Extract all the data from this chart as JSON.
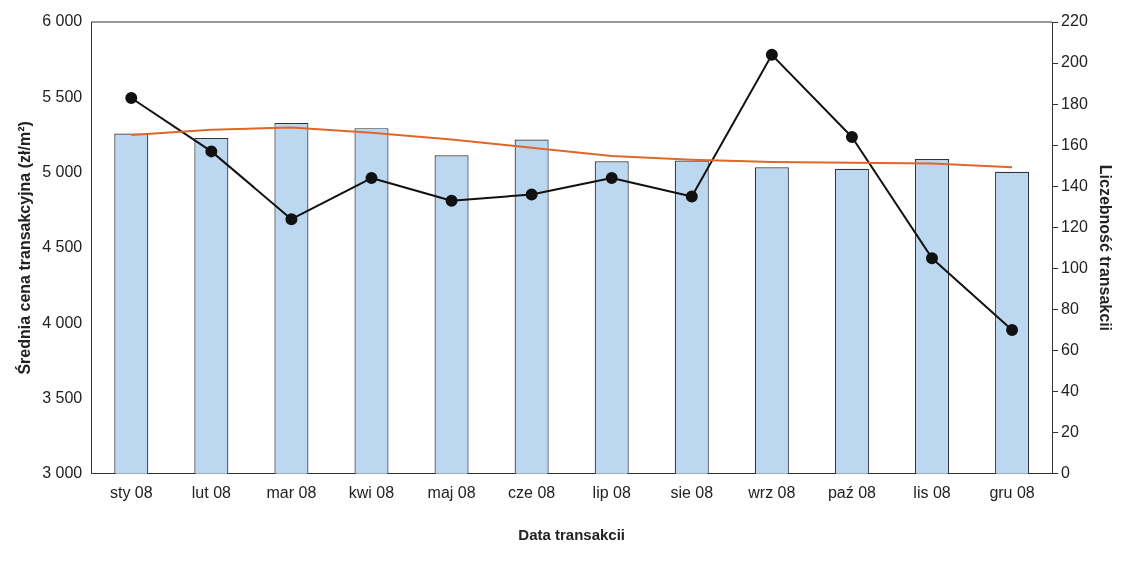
{
  "chart_data": {
    "type": "bar",
    "xlabel": "Data transakcii",
    "ylabel": "Średnia cena transakcyjna (zł/m²)",
    "y2label": "Liczebność transakcii",
    "categories": [
      "sty 08",
      "lut 08",
      "mar 08",
      "kwi 08",
      "maj 08",
      "cze 08",
      "lip 08",
      "sie 08",
      "wrz 08",
      "paź 08",
      "lis 08",
      "gru 08"
    ],
    "series": [
      {
        "color": "#bcd8f0",
        "values": [
          5260,
          5230,
          5330,
          5295,
          5115,
          5220,
          5075,
          5080,
          5035,
          5025,
          5090,
          5005
        ]
      },
      {
        "type": "line",
        "color": "#e0662a",
        "marker": "none",
        "values": [
          5250,
          5285,
          5300,
          5265,
          5220,
          5165,
          5110,
          5085,
          5070,
          5065,
          5060,
          5035
        ]
      },
      {
        "type": "line",
        "axis": "y2",
        "color": "#111111",
        "marker": "circle",
        "values": [
          183,
          157,
          124,
          144,
          133,
          136,
          144,
          135,
          204,
          164,
          105,
          70
        ]
      }
    ],
    "ylim": [
      3000,
      6000
    ],
    "yticks": [
      {
        "value": 3000,
        "label": "3 000"
      },
      {
        "value": 3500,
        "label": "3 500"
      },
      {
        "value": 4000,
        "label": "4 000"
      },
      {
        "value": 4500,
        "label": "4 500"
      },
      {
        "value": 5000,
        "label": "5 000"
      },
      {
        "value": 5500,
        "label": "5 500"
      },
      {
        "value": 6000,
        "label": "6 000"
      }
    ],
    "y2lim": [
      0,
      220
    ],
    "y2ticks": [
      0,
      20,
      40,
      60,
      80,
      100,
      120,
      140,
      160,
      180,
      200,
      220
    ],
    "grid": false,
    "legend": false
  }
}
